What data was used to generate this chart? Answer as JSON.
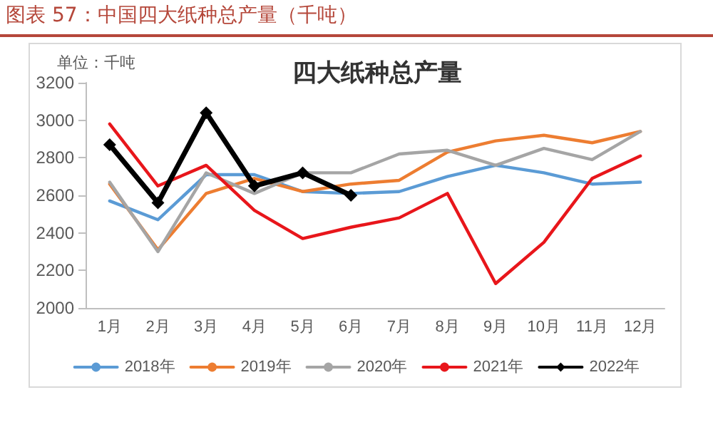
{
  "chart_data": {
    "type": "line",
    "title": "图表 57：中国四大纸种总产量（千吨）",
    "subtitle": "四大纸种总产量",
    "ylabel": "单位：千吨",
    "categories": [
      "1月",
      "2月",
      "3月",
      "4月",
      "5月",
      "6月",
      "7月",
      "8月",
      "9月",
      "10月",
      "11月",
      "12月"
    ],
    "series": [
      {
        "name": "2018年",
        "color": "#5b9bd5",
        "values": [
          2570,
          2470,
          2710,
          2710,
          2620,
          2610,
          2620,
          2700,
          2760,
          2720,
          2660,
          2670
        ]
      },
      {
        "name": "2019年",
        "color": "#ed7d31",
        "values": [
          2660,
          2310,
          2610,
          2690,
          2620,
          2660,
          2680,
          2830,
          2890,
          2920,
          2880,
          2940
        ]
      },
      {
        "name": "2020年",
        "color": "#a5a5a5",
        "values": [
          2670,
          2300,
          2720,
          2610,
          2720,
          2720,
          2820,
          2840,
          2760,
          2850,
          2790,
          2940
        ]
      },
      {
        "name": "2021年",
        "color": "#e8161b",
        "values": [
          2980,
          2650,
          2760,
          2520,
          2370,
          2430,
          2480,
          2610,
          2130,
          2350,
          2690,
          2810
        ]
      },
      {
        "name": "2022年",
        "color": "#000000",
        "marker": "diamond",
        "values": [
          2870,
          2560,
          3040,
          2650,
          2720,
          2600,
          null,
          null,
          null,
          null,
          null,
          null
        ]
      }
    ],
    "ylim": [
      2000,
      3200
    ],
    "yticks": [
      2000,
      2200,
      2400,
      2600,
      2800,
      3000,
      3200
    ],
    "grid": false,
    "legend": "bottom",
    "marker": "none",
    "line_style": "solid"
  }
}
